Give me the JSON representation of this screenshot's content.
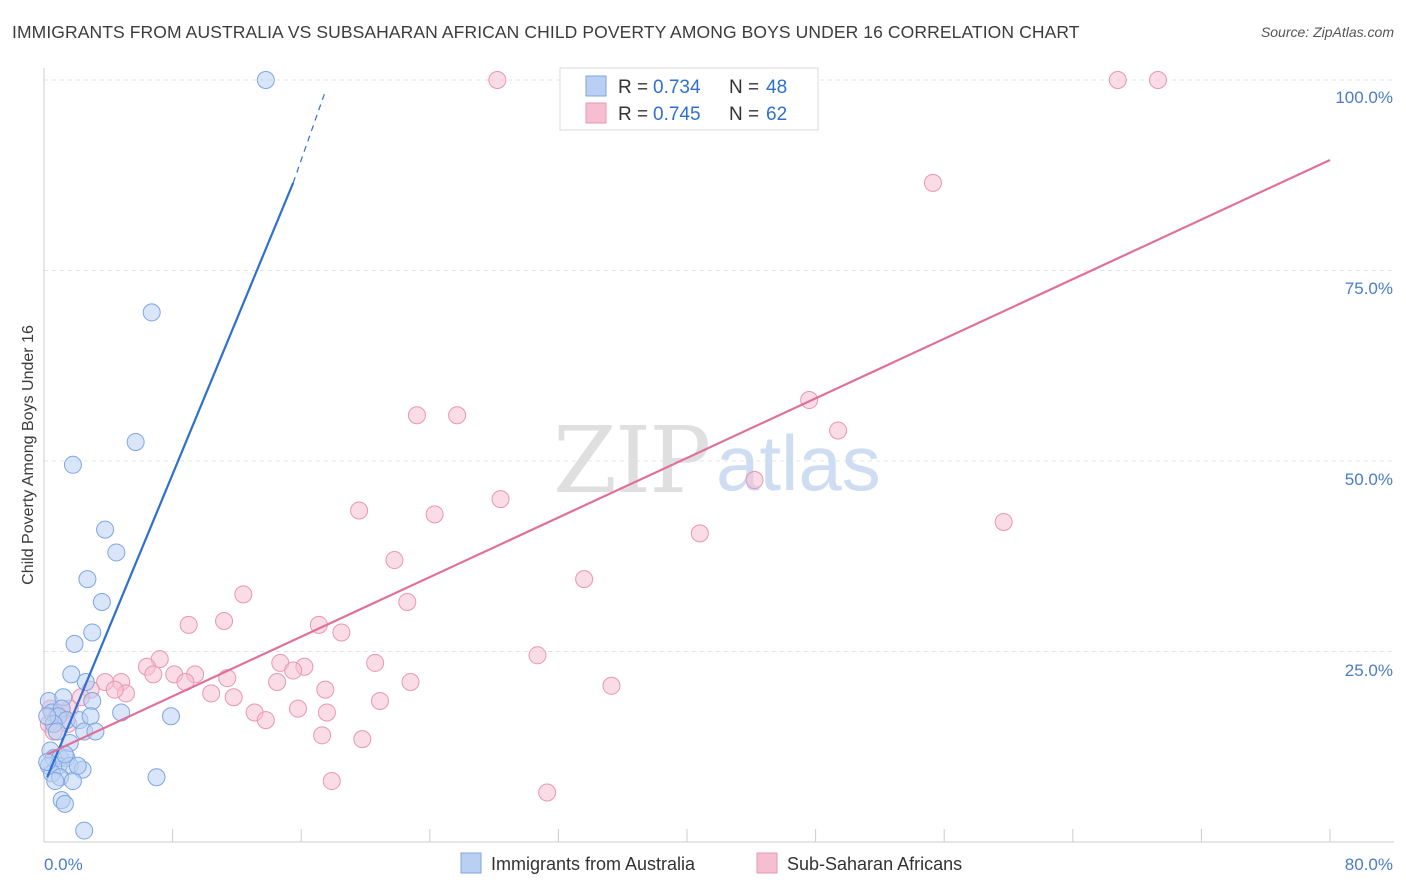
{
  "title": "IMMIGRANTS FROM AUSTRALIA VS SUBSAHARAN AFRICAN CHILD POVERTY AMONG BOYS UNDER 16 CORRELATION CHART",
  "source": "Source: ZipAtlas.com",
  "watermark": {
    "zip": "ZIP",
    "atlas": "atlas"
  },
  "legend": {
    "rows": [
      {
        "r_label": "R =",
        "r_value": "0.734",
        "n_label": "N =",
        "n_value": "48"
      },
      {
        "r_label": "R =",
        "r_value": "0.745",
        "n_label": "N =",
        "n_value": "62"
      }
    ]
  },
  "chart_data": {
    "type": "scatter",
    "ylabel": "Child Poverty Among Boys Under 16",
    "xlim": [
      0,
      80
    ],
    "ylim": [
      0,
      100
    ],
    "x_tick_labels": [
      "0.0%",
      "80.0%"
    ],
    "y_tick_labels": [
      "25.0%",
      "50.0%",
      "75.0%",
      "100.0%"
    ],
    "y_tick_values": [
      25,
      50,
      75,
      100
    ],
    "colors": {
      "blue": "#2f6fd1",
      "blue_fill": "#b9d0f3",
      "pink": "#e0709a",
      "pink_fill": "#f6bfd1"
    },
    "series": [
      {
        "name": "Immigrants from Australia",
        "color": "#2f6fd1",
        "trend": {
          "x0": 0.2,
          "y0": 8.5,
          "x1": 15.5,
          "y1": 86.5,
          "dash_to_x": 17.5,
          "dash_to_y": 98.5
        },
        "points": [
          [
            13.8,
            100
          ],
          [
            6.7,
            69.5
          ],
          [
            5.7,
            52.5
          ],
          [
            1.8,
            49.5
          ],
          [
            3.8,
            41
          ],
          [
            4.5,
            38
          ],
          [
            2.7,
            34.5
          ],
          [
            3.6,
            31.5
          ],
          [
            1.9,
            26
          ],
          [
            3.0,
            27.5
          ],
          [
            1.7,
            22
          ],
          [
            2.6,
            21
          ],
          [
            0.3,
            18.5
          ],
          [
            1.2,
            19
          ],
          [
            0.5,
            17
          ],
          [
            1.1,
            17.5
          ],
          [
            0.9,
            16.5
          ],
          [
            3.0,
            18.5
          ],
          [
            1.4,
            16
          ],
          [
            0.6,
            15.5
          ],
          [
            0.2,
            16.5
          ],
          [
            2.2,
            16
          ],
          [
            2.9,
            16.5
          ],
          [
            4.8,
            17
          ],
          [
            2.5,
            14.5
          ],
          [
            0.8,
            14.5
          ],
          [
            7.9,
            16.5
          ],
          [
            3.2,
            14.5
          ],
          [
            0.4,
            12
          ],
          [
            0.6,
            11
          ],
          [
            1.0,
            11
          ],
          [
            1.4,
            11
          ],
          [
            1.6,
            13
          ],
          [
            0.3,
            10
          ],
          [
            0.9,
            10
          ],
          [
            1.6,
            10
          ],
          [
            2.4,
            9.5
          ],
          [
            0.5,
            9
          ],
          [
            1.0,
            8.5
          ],
          [
            1.8,
            8
          ],
          [
            0.7,
            8
          ],
          [
            7.0,
            8.5
          ],
          [
            1.1,
            5.5
          ],
          [
            1.3,
            5
          ],
          [
            2.5,
            1.5
          ],
          [
            0.2,
            10.5
          ],
          [
            1.3,
            11.5
          ],
          [
            2.1,
            10
          ]
        ]
      },
      {
        "name": "Sub-Saharan Africans",
        "color": "#e0709a",
        "trend": {
          "x0": 0.2,
          "y0": 11.5,
          "x1": 80,
          "y1": 89.5
        },
        "points": [
          [
            28.2,
            100
          ],
          [
            66.8,
            100
          ],
          [
            69.3,
            100
          ],
          [
            55.3,
            86.5
          ],
          [
            47.6,
            58
          ],
          [
            49.4,
            54
          ],
          [
            23.2,
            56
          ],
          [
            25.7,
            56
          ],
          [
            44.2,
            47.5
          ],
          [
            28.4,
            45
          ],
          [
            19.6,
            43.5
          ],
          [
            24.3,
            43
          ],
          [
            40.8,
            40.5
          ],
          [
            59.7,
            42
          ],
          [
            21.8,
            37
          ],
          [
            33.6,
            34.5
          ],
          [
            12.4,
            32.5
          ],
          [
            22.6,
            31.5
          ],
          [
            9.0,
            28.5
          ],
          [
            11.2,
            29
          ],
          [
            17.1,
            28.5
          ],
          [
            18.5,
            27.5
          ],
          [
            30.7,
            24.5
          ],
          [
            7.2,
            24
          ],
          [
            14.7,
            23.5
          ],
          [
            16.2,
            23
          ],
          [
            20.6,
            23.5
          ],
          [
            6.4,
            23
          ],
          [
            8.1,
            22
          ],
          [
            9.4,
            22
          ],
          [
            11.4,
            21.5
          ],
          [
            15.5,
            22.5
          ],
          [
            6.8,
            22
          ],
          [
            4.8,
            21
          ],
          [
            8.8,
            21
          ],
          [
            3.8,
            21
          ],
          [
            2.9,
            20
          ],
          [
            14.5,
            21
          ],
          [
            17.5,
            20
          ],
          [
            22.8,
            21
          ],
          [
            35.3,
            20.5
          ],
          [
            10.4,
            19.5
          ],
          [
            11.8,
            19
          ],
          [
            2.3,
            19
          ],
          [
            5.1,
            19.5
          ],
          [
            4.4,
            20
          ],
          [
            20.9,
            18.5
          ],
          [
            0.4,
            17.5
          ],
          [
            1.1,
            17
          ],
          [
            1.6,
            17.5
          ],
          [
            0.8,
            16.5
          ],
          [
            15.8,
            17.5
          ],
          [
            13.1,
            17
          ],
          [
            13.8,
            16
          ],
          [
            17.6,
            17
          ],
          [
            0.3,
            15.5
          ],
          [
            1.5,
            15.5
          ],
          [
            17.3,
            14
          ],
          [
            19.8,
            13.5
          ],
          [
            0.6,
            14.5
          ],
          [
            17.9,
            8
          ],
          [
            31.3,
            6.5
          ]
        ]
      }
    ]
  },
  "bottom_legend": {
    "items": [
      {
        "label": "Immigrants from Australia"
      },
      {
        "label": "Sub-Saharan Africans"
      }
    ]
  }
}
